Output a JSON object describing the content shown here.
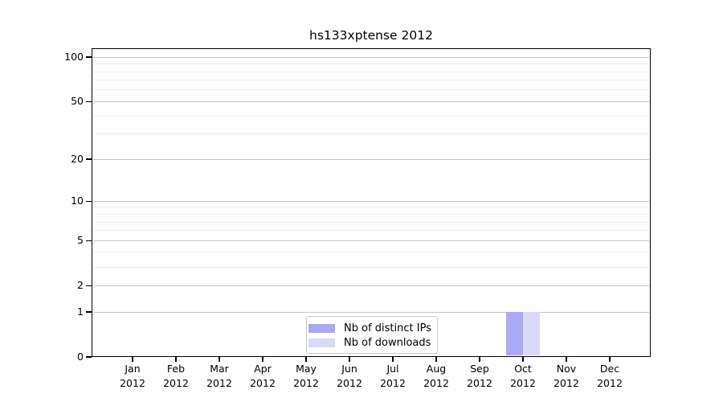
{
  "chart_data": {
    "type": "bar",
    "title": "hs133xptense 2012",
    "categories": [
      "Jan 2012",
      "Feb 2012",
      "Mar 2012",
      "Apr 2012",
      "May 2012",
      "Jun 2012",
      "Jul 2012",
      "Aug 2012",
      "Sep 2012",
      "Oct 2012",
      "Nov 2012",
      "Dec 2012"
    ],
    "series": [
      {
        "name": "Nb of distinct IPs",
        "color": "#a9a9f5",
        "values": [
          0,
          0,
          0,
          0,
          0,
          0,
          0,
          0,
          0,
          1,
          0,
          0
        ]
      },
      {
        "name": "Nb of downloads",
        "color": "#d9d9f8",
        "values": [
          0,
          0,
          0,
          0,
          0,
          0,
          0,
          0,
          0,
          1,
          0,
          0
        ]
      }
    ],
    "xlabel": "",
    "ylabel": "",
    "yscale": "log1p",
    "ylim": [
      0,
      115
    ],
    "yticks": [
      0,
      1,
      2,
      5,
      10,
      20,
      50,
      100
    ],
    "yticks_minor": [
      3,
      4,
      6,
      7,
      8,
      9,
      30,
      40,
      60,
      70,
      80,
      90
    ],
    "grid": {
      "enabled": true,
      "major_color": "#c6c6c6",
      "minor_color": "#ededed"
    },
    "legend": {
      "position": "lower center",
      "border_color": "#c9c9c9",
      "background": "#ffffff"
    }
  }
}
